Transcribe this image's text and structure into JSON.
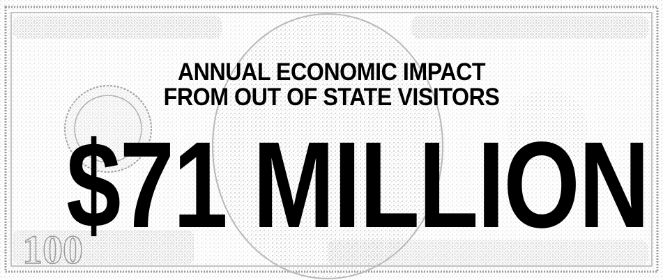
{
  "graphic": {
    "headline_line1": "ANNUAL ECONOMIC IMPACT",
    "headline_line2": "FROM OUT OF STATE VISITORS",
    "amount": "$71 MILLION"
  },
  "background": {
    "description_icon": "hundred-dollar-bill-engraving",
    "ink_color": "#8a8a8a",
    "text_color": "#000000"
  }
}
